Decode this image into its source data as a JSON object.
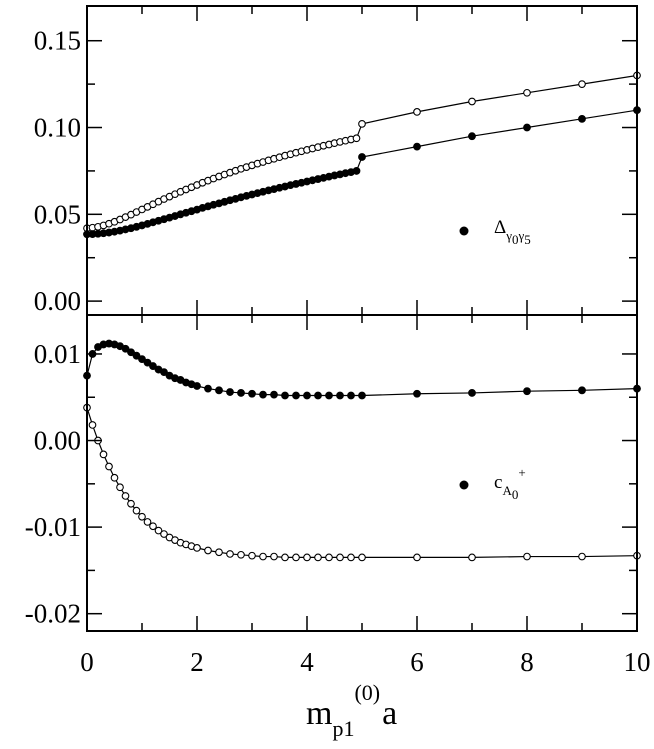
{
  "chart_data": [
    {
      "type": "line",
      "panel": "top",
      "xlim": [
        0,
        10
      ],
      "ylim": [
        -0.008,
        0.17
      ],
      "yticks": [
        0.0,
        0.05,
        0.1,
        0.15
      ],
      "ytick_labels": [
        "0.00",
        "0.05",
        "0.10",
        "0.15"
      ],
      "legend": {
        "marker": "filled",
        "symbol": "Δ",
        "subscript": "γ0γ5",
        "sub1": "γ",
        "sub2": "0",
        "sub3": "γ",
        "sub4": "5",
        "placement": "middle-right"
      },
      "series": [
        {
          "marker": "open",
          "x": [
            0,
            0.1,
            0.2,
            0.3,
            0.4,
            0.5,
            0.6,
            0.7,
            0.8,
            0.9,
            1.0,
            1.1,
            1.2,
            1.3,
            1.4,
            1.5,
            1.6,
            1.7,
            1.8,
            1.9,
            2.0,
            2.1,
            2.2,
            2.3,
            2.4,
            2.5,
            2.6,
            2.7,
            2.8,
            2.9,
            3.0,
            3.1,
            3.2,
            3.3,
            3.4,
            3.5,
            3.6,
            3.7,
            3.8,
            3.9,
            4.0,
            4.1,
            4.2,
            4.3,
            4.4,
            4.5,
            4.6,
            4.7,
            4.8,
            4.9,
            5.0,
            6,
            7,
            8,
            9,
            10
          ],
          "y": [
            0.042,
            0.0423,
            0.0428,
            0.0436,
            0.0446,
            0.0457,
            0.047,
            0.0484,
            0.0498,
            0.0513,
            0.0528,
            0.0543,
            0.0558,
            0.0573,
            0.0588,
            0.0602,
            0.0616,
            0.063,
            0.0643,
            0.0656,
            0.0669,
            0.0682,
            0.0694,
            0.0706,
            0.0718,
            0.0729,
            0.074,
            0.0751,
            0.0762,
            0.0772,
            0.0782,
            0.0792,
            0.0801,
            0.0811,
            0.082,
            0.0829,
            0.0838,
            0.0846,
            0.0855,
            0.0863,
            0.0871,
            0.0879,
            0.0887,
            0.0895,
            0.0902,
            0.091,
            0.0917,
            0.0924,
            0.0931,
            0.0938,
            0.1021,
            0.109,
            0.115,
            0.12,
            0.125,
            0.13
          ]
        },
        {
          "marker": "filled",
          "x": [
            0,
            0.1,
            0.2,
            0.3,
            0.4,
            0.5,
            0.6,
            0.7,
            0.8,
            0.9,
            1.0,
            1.1,
            1.2,
            1.3,
            1.4,
            1.5,
            1.6,
            1.7,
            1.8,
            1.9,
            2.0,
            2.1,
            2.2,
            2.3,
            2.4,
            2.5,
            2.6,
            2.7,
            2.8,
            2.9,
            3.0,
            3.1,
            3.2,
            3.3,
            3.4,
            3.5,
            3.6,
            3.7,
            3.8,
            3.9,
            4.0,
            4.1,
            4.2,
            4.3,
            4.4,
            4.5,
            4.6,
            4.7,
            4.8,
            4.9,
            5.0,
            6,
            7,
            8,
            9,
            10
          ],
          "y": [
            0.0385,
            0.0386,
            0.0388,
            0.0391,
            0.0395,
            0.04,
            0.0406,
            0.0413,
            0.042,
            0.0428,
            0.0436,
            0.0445,
            0.0454,
            0.0463,
            0.0472,
            0.0481,
            0.049,
            0.05,
            0.0509,
            0.0518,
            0.0527,
            0.0537,
            0.0546,
            0.0555,
            0.0563,
            0.0572,
            0.0581,
            0.0589,
            0.0598,
            0.0606,
            0.0614,
            0.0622,
            0.063,
            0.0638,
            0.0645,
            0.0653,
            0.066,
            0.0668,
            0.0675,
            0.0682,
            0.0689,
            0.0696,
            0.0703,
            0.071,
            0.0717,
            0.0724,
            0.073,
            0.0737,
            0.0743,
            0.075,
            0.083,
            0.089,
            0.095,
            0.1,
            0.105,
            0.11
          ]
        }
      ]
    },
    {
      "type": "line",
      "panel": "bottom",
      "xlim": [
        0,
        10
      ],
      "ylim": [
        -0.022,
        0.0145
      ],
      "yticks": [
        -0.02,
        -0.01,
        0.0,
        0.01
      ],
      "ytick_labels": [
        "-0.02",
        "-0.01",
        "0.00",
        "0.01"
      ],
      "xticks": [
        0,
        2,
        4,
        6,
        8,
        10
      ],
      "xtick_labels": [
        "0",
        "2",
        "4",
        "6",
        "8",
        "10"
      ],
      "xlabel": {
        "main": "m",
        "sub": "p1",
        "sup": "(0)",
        "tail": "a"
      },
      "legend": {
        "marker": "filled",
        "symbol": "c",
        "sub1": "A",
        "sub2": "0",
        "sup": "+",
        "placement": "middle-right"
      },
      "series": [
        {
          "marker": "filled",
          "x": [
            0,
            0.1,
            0.2,
            0.3,
            0.4,
            0.5,
            0.6,
            0.7,
            0.8,
            0.9,
            1.0,
            1.1,
            1.2,
            1.3,
            1.4,
            1.5,
            1.6,
            1.7,
            1.8,
            1.9,
            2.0,
            2.2,
            2.4,
            2.6,
            2.8,
            3.0,
            3.2,
            3.4,
            3.6,
            3.8,
            4.0,
            4.2,
            4.4,
            4.6,
            4.8,
            5.0,
            6,
            7,
            8,
            9,
            10
          ],
          "y": [
            0.0075,
            0.01,
            0.0108,
            0.0111,
            0.0112,
            0.0111,
            0.0109,
            0.0106,
            0.0102,
            0.0098,
            0.0094,
            0.009,
            0.0086,
            0.0082,
            0.0079,
            0.0075,
            0.0072,
            0.007,
            0.0067,
            0.0065,
            0.0063,
            0.006,
            0.0058,
            0.0056,
            0.0055,
            0.0054,
            0.0053,
            0.0053,
            0.0052,
            0.0052,
            0.0052,
            0.0052,
            0.0052,
            0.0052,
            0.0052,
            0.0052,
            0.0054,
            0.0055,
            0.0057,
            0.0058,
            0.006
          ]
        },
        {
          "marker": "open",
          "x": [
            0,
            0.1,
            0.2,
            0.3,
            0.4,
            0.5,
            0.6,
            0.7,
            0.8,
            0.9,
            1.0,
            1.1,
            1.2,
            1.3,
            1.4,
            1.5,
            1.6,
            1.7,
            1.8,
            1.9,
            2.0,
            2.2,
            2.4,
            2.6,
            2.8,
            3.0,
            3.2,
            3.4,
            3.6,
            3.8,
            4.0,
            4.2,
            4.4,
            4.6,
            4.8,
            5.0,
            6,
            7,
            8,
            9,
            10
          ],
          "y": [
            0.0038,
            0.0018,
            0.0,
            -0.0016,
            -0.003,
            -0.0043,
            -0.0054,
            -0.0064,
            -0.0073,
            -0.0081,
            -0.0088,
            -0.0094,
            -0.0099,
            -0.0104,
            -0.0108,
            -0.0112,
            -0.0115,
            -0.0118,
            -0.012,
            -0.0122,
            -0.0124,
            -0.0127,
            -0.0129,
            -0.0131,
            -0.0132,
            -0.0133,
            -0.0134,
            -0.0134,
            -0.0135,
            -0.0135,
            -0.0135,
            -0.0135,
            -0.0135,
            -0.0135,
            -0.0135,
            -0.0135,
            -0.0135,
            -0.0135,
            -0.0134,
            -0.0134,
            -0.0133
          ]
        }
      ]
    }
  ]
}
